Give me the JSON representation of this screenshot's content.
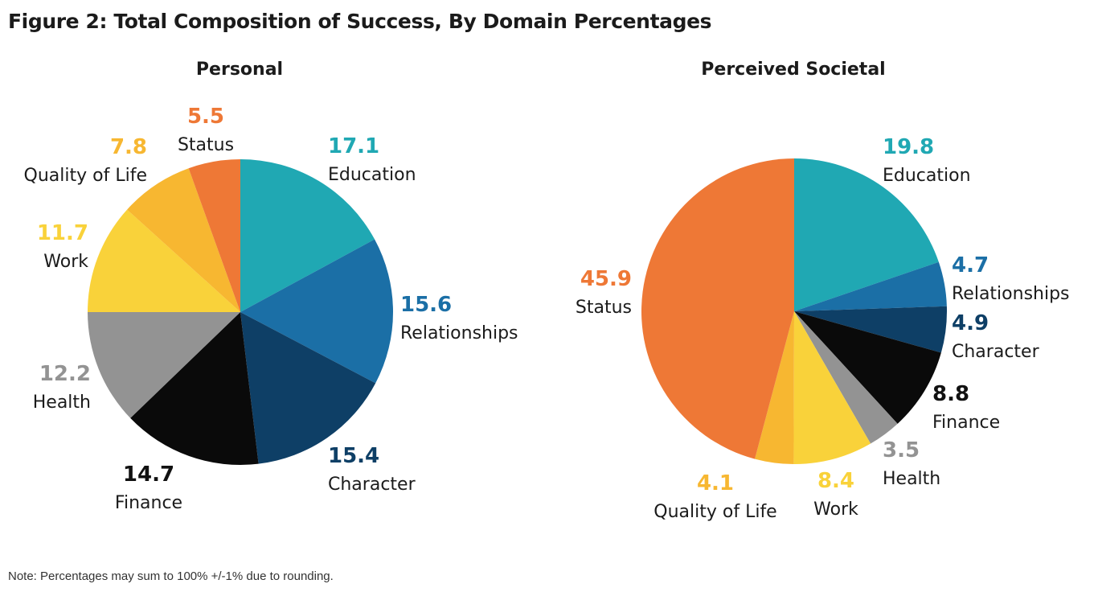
{
  "figure": {
    "title": "Figure 2: Total Composition of Success, By Domain Percentages",
    "note": "Note: Percentages may sum to 100% +/-1% due to rounding."
  },
  "colors": {
    "Education": "#20a8b3",
    "Relationships": "#1b6fa6",
    "Character": "#0e3f66",
    "Finance": "#0a0a0a",
    "Health": "#939393",
    "Work": "#f9d23a",
    "Quality of Life": "#f7b731",
    "Status": "#ee7836"
  },
  "chart_data": [
    {
      "type": "pie",
      "title": "Personal",
      "start_angle_deg": 0,
      "direction": "clockwise",
      "slices": [
        {
          "label": "Education",
          "value": 17.1,
          "value_color": "#20a8b3"
        },
        {
          "label": "Relationships",
          "value": 15.6,
          "value_color": "#1b6fa6"
        },
        {
          "label": "Character",
          "value": 15.4,
          "value_color": "#0e3f66"
        },
        {
          "label": "Finance",
          "value": 14.7,
          "value_color": "#111111"
        },
        {
          "label": "Health",
          "value": 12.2,
          "value_color": "#939393"
        },
        {
          "label": "Work",
          "value": 11.7,
          "value_color": "#f9d23a"
        },
        {
          "label": "Quality of Life",
          "value": 7.8,
          "value_color": "#f7b731"
        },
        {
          "label": "Status",
          "value": 5.5,
          "value_color": "#ee7836"
        }
      ]
    },
    {
      "type": "pie",
      "title": "Perceived Societal",
      "start_angle_deg": 0,
      "direction": "clockwise",
      "slices": [
        {
          "label": "Education",
          "value": 19.8,
          "value_color": "#20a8b3"
        },
        {
          "label": "Relationships",
          "value": 4.7,
          "value_color": "#1b6fa6"
        },
        {
          "label": "Character",
          "value": 4.9,
          "value_color": "#0e3f66"
        },
        {
          "label": "Finance",
          "value": 8.8,
          "value_color": "#111111"
        },
        {
          "label": "Health",
          "value": 3.5,
          "value_color": "#939393"
        },
        {
          "label": "Work",
          "value": 8.4,
          "value_color": "#f9d23a"
        },
        {
          "label": "Quality of Life",
          "value": 4.1,
          "value_color": "#f7b731"
        },
        {
          "label": "Status",
          "value": 45.9,
          "value_color": "#ee7836"
        }
      ]
    }
  ]
}
